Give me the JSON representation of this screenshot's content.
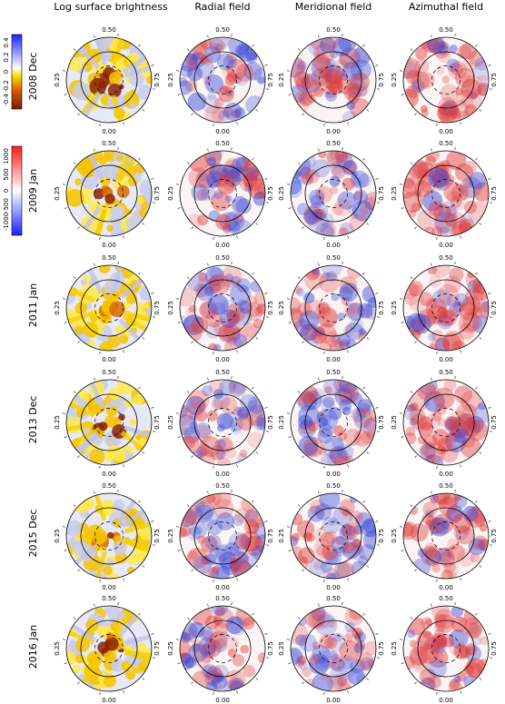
{
  "columns": [
    "Log surface brightness",
    "Radial field",
    "Meridional field",
    "Azimuthal field"
  ],
  "rows": [
    "2008 Dec",
    "2009 Jan",
    "2011 Jan",
    "2013 Dec",
    "2015 Dec",
    "2016 Jan"
  ],
  "phase_labels": {
    "top": "0.50",
    "bottom": "0.00",
    "left": "0.25",
    "right": "0.75"
  },
  "colorbars": [
    {
      "id": "brightness-colorbar",
      "ticks": [
        "-0.4",
        "-0.2",
        "0",
        "0.2",
        "0.4"
      ],
      "range": [
        -0.5,
        0.5
      ],
      "colors": [
        "#7a1c00",
        "#d85a00",
        "#ffe000",
        "#ffffff",
        "#1a22ff"
      ]
    },
    {
      "id": "field-colorbar",
      "ticks": [
        "-1000",
        "-500",
        "0",
        "500",
        "1000"
      ],
      "range": [
        -1200,
        1200
      ],
      "colors": [
        "#1a22ff",
        "#ffffff",
        "#ff1a1a"
      ]
    }
  ],
  "palette": {
    "brightness": [
      "#8a2200",
      "#d86a00",
      "#f5c400",
      "#ffe94a",
      "#c8ccf0"
    ],
    "field_positive": "#e03a3a",
    "field_negative": "#3a4ad8"
  }
}
